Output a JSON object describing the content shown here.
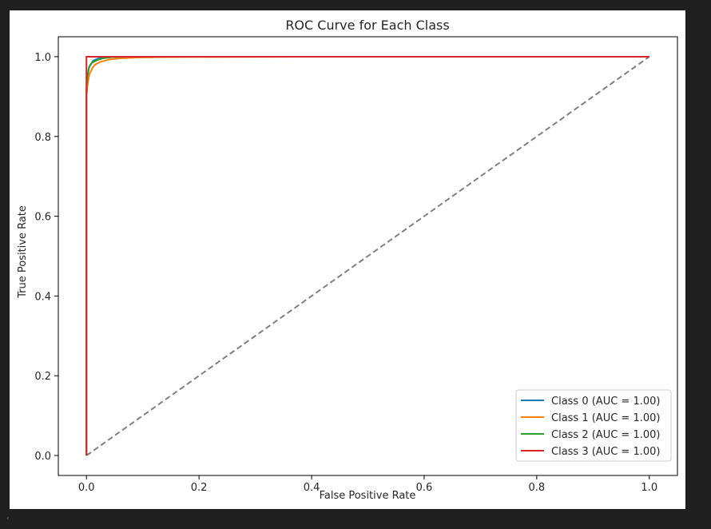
{
  "window": {
    "scroll_indicator": "‹"
  },
  "chart_data": {
    "type": "line",
    "title": "ROC Curve for Each Class",
    "xlabel": "False Positive Rate",
    "ylabel": "True Positive Rate",
    "xlim": [
      -0.05,
      1.05
    ],
    "ylim": [
      -0.05,
      1.05
    ],
    "grid": false,
    "legend_position": "lower-right",
    "x_ticks": [
      0.0,
      0.2,
      0.4,
      0.6,
      0.8,
      1.0
    ],
    "x_tick_labels": [
      "0.0",
      "0.2",
      "0.4",
      "0.6",
      "0.8",
      "1.0"
    ],
    "y_ticks": [
      0.0,
      0.2,
      0.4,
      0.6,
      0.8,
      1.0
    ],
    "y_tick_labels": [
      "0.0",
      "0.2",
      "0.4",
      "0.6",
      "0.8",
      "1.0"
    ],
    "series": [
      {
        "name": "Class 0 (AUC = 1.00)",
        "color": "#1f77b4",
        "x": [
          0.0,
          0.0,
          0.002,
          0.004,
          0.007,
          0.012,
          0.02,
          0.03,
          0.05,
          0.1,
          1.0
        ],
        "y": [
          0.0,
          0.9,
          0.95,
          0.97,
          0.98,
          0.99,
          0.995,
          0.998,
          1.0,
          1.0,
          1.0
        ]
      },
      {
        "name": "Class 1 (AUC = 1.00)",
        "color": "#ff7f0e",
        "x": [
          0.0,
          0.0,
          0.002,
          0.005,
          0.01,
          0.015,
          0.025,
          0.04,
          0.06,
          0.09,
          0.13,
          0.41,
          1.0
        ],
        "y": [
          0.0,
          0.9,
          0.93,
          0.955,
          0.97,
          0.98,
          0.987,
          0.993,
          0.996,
          0.998,
          0.999,
          1.0,
          1.0
        ]
      },
      {
        "name": "Class 2 (AUC = 1.00)",
        "color": "#2ca02c",
        "x": [
          0.0,
          0.0,
          0.002,
          0.005,
          0.01,
          0.02,
          0.03,
          0.045,
          0.08,
          1.0
        ],
        "y": [
          0.0,
          0.92,
          0.955,
          0.975,
          0.985,
          0.992,
          0.996,
          0.999,
          1.0,
          1.0
        ]
      },
      {
        "name": "Class 3 (AUC = 1.00)",
        "color": "#d62728",
        "x": [
          0.0,
          0.0,
          0.0,
          1.0
        ],
        "y": [
          0.0,
          0.99,
          1.0,
          1.0
        ]
      }
    ],
    "reference_line": {
      "style": "dashed",
      "color": "#808080",
      "x": [
        0.0,
        1.0
      ],
      "y": [
        0.0,
        1.0
      ]
    }
  }
}
